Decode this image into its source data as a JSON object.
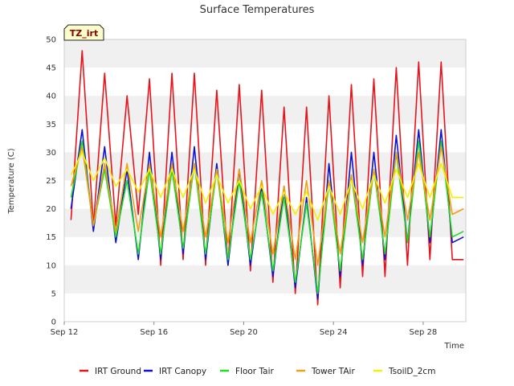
{
  "chart_data": {
    "type": "line",
    "title": "Surface Temperatures",
    "xlabel": "Time",
    "ylabel": "Temperature (C)",
    "site_tag": "TZ_irt",
    "xlim": [
      12,
      29.9
    ],
    "ylim": [
      0,
      50
    ],
    "yticks": [
      0,
      5,
      10,
      15,
      20,
      25,
      30,
      35,
      40,
      45,
      50
    ],
    "xticks": [
      {
        "x": 12,
        "label": "Sep 12"
      },
      {
        "x": 16,
        "label": "Sep 16"
      },
      {
        "x": 20,
        "label": "Sep 20"
      },
      {
        "x": 24,
        "label": "Sep 24"
      },
      {
        "x": 28,
        "label": "Sep 28"
      }
    ],
    "grid": "horizontal bands",
    "legend_position": "bottom",
    "x": [
      12.3,
      12.8,
      13.3,
      13.8,
      14.3,
      14.8,
      15.3,
      15.8,
      16.3,
      16.8,
      17.3,
      17.8,
      18.3,
      18.8,
      19.3,
      19.8,
      20.3,
      20.8,
      21.3,
      21.8,
      22.3,
      22.8,
      23.3,
      23.8,
      24.3,
      24.8,
      25.3,
      25.8,
      26.3,
      26.8,
      27.3,
      27.8,
      28.3,
      28.8,
      29.3,
      29.8
    ],
    "series": [
      {
        "name": "IRT Ground",
        "color": "#e8141c",
        "values": [
          18,
          48,
          17,
          44,
          17,
          40,
          19,
          43,
          10,
          44,
          11,
          44,
          10,
          41,
          10,
          42,
          9,
          41,
          7,
          38,
          5,
          38,
          3,
          40,
          6,
          42,
          8,
          43,
          8,
          45,
          10,
          46,
          11,
          46,
          11,
          11
        ]
      },
      {
        "name": "IRT Canopy",
        "color": "#1010d0",
        "values": [
          20,
          34,
          16,
          31,
          14,
          27,
          11,
          30,
          11,
          30,
          12,
          31,
          11,
          28,
          10,
          27,
          10,
          24,
          8,
          24,
          6,
          22,
          4,
          28,
          8,
          30,
          10,
          30,
          11,
          33,
          14,
          34,
          14,
          34,
          14,
          15
        ]
      },
      {
        "name": "Floor Tair",
        "color": "#22dd22",
        "values": [
          22,
          32,
          17,
          27,
          15,
          25,
          12,
          27,
          12,
          27,
          13,
          28,
          12,
          27,
          11,
          25,
          11,
          23,
          9,
          22,
          7,
          21,
          5,
          25,
          9,
          26,
          11,
          27,
          12,
          30,
          14,
          32,
          15,
          32,
          15,
          16
        ]
      },
      {
        "name": "Tower TAir",
        "color": "#f0a010",
        "values": [
          24,
          31,
          17,
          28,
          16,
          28,
          16,
          28,
          15,
          28,
          16,
          28,
          15,
          27,
          14,
          27,
          14,
          25,
          12,
          24,
          11,
          25,
          10,
          25,
          12,
          26,
          14,
          27,
          15,
          30,
          18,
          30,
          18,
          31,
          19,
          20
        ]
      },
      {
        "name": "TsoilD_2cm",
        "color": "#f5f000",
        "values": [
          26,
          30,
          25,
          29,
          24,
          27,
          23,
          27,
          22,
          27,
          22,
          27,
          21,
          26,
          21,
          25,
          20,
          24,
          19,
          23,
          19,
          23,
          18,
          24,
          19,
          25,
          20,
          26,
          21,
          27,
          22,
          28,
          22,
          28,
          22,
          22
        ]
      }
    ]
  }
}
